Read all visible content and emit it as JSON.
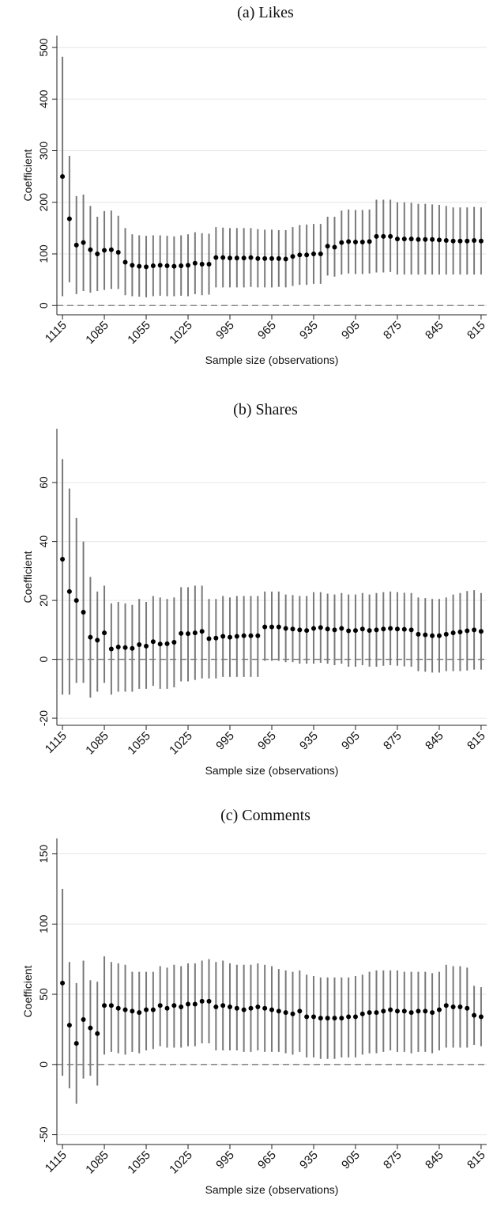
{
  "chart_data": [
    {
      "type": "errorbar",
      "title": "(a) Likes",
      "xlabel": "Sample size (observations)",
      "ylabel": "Coefficient",
      "x": [
        1115,
        1110,
        1105,
        1100,
        1095,
        1090,
        1085,
        1080,
        1075,
        1070,
        1065,
        1060,
        1055,
        1050,
        1045,
        1040,
        1035,
        1030,
        1025,
        1020,
        1015,
        1010,
        1005,
        1000,
        995,
        990,
        985,
        980,
        975,
        970,
        965,
        960,
        955,
        950,
        945,
        940,
        935,
        930,
        925,
        920,
        915,
        910,
        905,
        900,
        895,
        890,
        885,
        880,
        875,
        870,
        865,
        860,
        855,
        850,
        845,
        840,
        835,
        830,
        825,
        820,
        815
      ],
      "values": [
        250,
        168,
        117,
        122,
        108,
        100,
        107,
        108,
        103,
        84,
        78,
        76,
        75,
        77,
        78,
        77,
        76,
        77,
        78,
        82,
        80,
        80,
        93,
        93,
        92,
        92,
        92,
        93,
        91,
        91,
        91,
        91,
        90,
        95,
        98,
        98,
        100,
        100,
        115,
        113,
        122,
        124,
        123,
        123,
        124,
        134,
        134,
        134,
        129,
        129,
        129,
        128,
        128,
        128,
        127,
        126,
        125,
        125,
        125,
        126,
        125
      ],
      "lower": [
        18,
        45,
        22,
        28,
        25,
        28,
        30,
        32,
        32,
        20,
        18,
        17,
        16,
        18,
        19,
        18,
        18,
        19,
        18,
        22,
        20,
        21,
        35,
        35,
        35,
        35,
        35,
        36,
        35,
        35,
        35,
        36,
        35,
        38,
        40,
        40,
        42,
        42,
        58,
        56,
        60,
        62,
        61,
        61,
        62,
        64,
        64,
        65,
        60,
        60,
        60,
        60,
        60,
        60,
        60,
        60,
        60,
        60,
        60,
        60,
        60
      ],
      "upper": [
        482,
        290,
        212,
        215,
        193,
        172,
        183,
        184,
        174,
        150,
        138,
        136,
        135,
        136,
        136,
        135,
        134,
        136,
        138,
        142,
        140,
        139,
        152,
        151,
        150,
        150,
        150,
        150,
        148,
        147,
        147,
        146,
        146,
        152,
        156,
        157,
        158,
        158,
        172,
        172,
        184,
        186,
        185,
        185,
        186,
        205,
        205,
        205,
        200,
        200,
        199,
        197,
        197,
        196,
        195,
        193,
        190,
        190,
        190,
        191,
        190
      ],
      "color": "#000000",
      "ci_color": "#7a7a7a",
      "reference_line": 0,
      "grid": true,
      "xlim": [
        1119,
        811
      ],
      "xticks": [
        1115,
        1085,
        1055,
        1025,
        995,
        965,
        935,
        905,
        875,
        845,
        815
      ],
      "ylim": [
        -18,
        523
      ],
      "yticks": [
        0,
        100,
        200,
        300,
        400,
        500
      ]
    },
    {
      "type": "errorbar",
      "title": "(b) Shares",
      "xlabel": "Sample size (observations)",
      "ylabel": "Coefficient",
      "x": [
        1115,
        1110,
        1105,
        1100,
        1095,
        1090,
        1085,
        1080,
        1075,
        1070,
        1065,
        1060,
        1055,
        1050,
        1045,
        1040,
        1035,
        1030,
        1025,
        1020,
        1015,
        1010,
        1005,
        1000,
        995,
        990,
        985,
        980,
        975,
        970,
        965,
        960,
        955,
        950,
        945,
        940,
        935,
        930,
        925,
        920,
        915,
        910,
        905,
        900,
        895,
        890,
        885,
        880,
        875,
        870,
        865,
        860,
        855,
        850,
        845,
        840,
        835,
        830,
        825,
        820,
        815
      ],
      "values": [
        34,
        23,
        20,
        16,
        7.5,
        6.5,
        9,
        3.5,
        4.2,
        4,
        3.7,
        5,
        4.5,
        6,
        5.2,
        5.3,
        5.8,
        8.8,
        8.7,
        9,
        9.5,
        7,
        7.2,
        7.8,
        7.5,
        7.8,
        8,
        8,
        8,
        11,
        11,
        11,
        10.5,
        10.3,
        10,
        9.8,
        10.5,
        10.8,
        10.3,
        10,
        10.5,
        9.7,
        9.8,
        10.3,
        9.8,
        10,
        10.3,
        10.5,
        10.3,
        10.2,
        10,
        8.5,
        8.3,
        8,
        8,
        8.5,
        9,
        9.3,
        9.7,
        10,
        9.5
      ],
      "lower": [
        -12,
        -12,
        -8,
        -8,
        -13,
        -11,
        -8,
        -12,
        -11,
        -11,
        -11,
        -10,
        -10,
        -9,
        -10,
        -10,
        -9.5,
        -7.5,
        -7.5,
        -7,
        -6.5,
        -6.5,
        -6.5,
        -6,
        -6,
        -6,
        -6,
        -6,
        -6,
        -0.5,
        -0.5,
        -0.5,
        -1,
        -1,
        -1.5,
        -1.5,
        -1.5,
        -1.2,
        -1.5,
        -2,
        -1.5,
        -2.5,
        -2.5,
        -2,
        -2.5,
        -2.5,
        -2.2,
        -2,
        -2.2,
        -2.4,
        -2.5,
        -4,
        -4.2,
        -4.5,
        -4.5,
        -4,
        -4,
        -4,
        -3.8,
        -3.5,
        -3.5
      ],
      "upper": [
        68,
        58,
        48,
        40,
        28,
        23,
        25,
        19,
        19.5,
        19,
        18.5,
        20.5,
        19.5,
        21.5,
        21,
        20.5,
        21,
        24.5,
        24.5,
        25,
        25,
        20.5,
        20.5,
        21.5,
        21,
        21.5,
        21.5,
        21.5,
        21.5,
        23,
        23,
        23,
        22,
        21.8,
        21.5,
        21.5,
        22.8,
        22.8,
        22.3,
        22,
        22.5,
        22,
        22,
        22.5,
        22,
        22.5,
        22.8,
        23,
        22.8,
        22.6,
        22.5,
        21,
        20.8,
        20.5,
        20.5,
        21,
        22,
        22.5,
        23.2,
        23.5,
        22.5
      ],
      "color": "#000000",
      "ci_color": "#7a7a7a",
      "reference_line": 0,
      "grid": true,
      "xlim": [
        1119,
        811
      ],
      "xticks": [
        1115,
        1085,
        1055,
        1025,
        995,
        965,
        935,
        905,
        875,
        845,
        815
      ],
      "ylim": [
        -22.4,
        78.3
      ],
      "yticks": [
        -20,
        0,
        20,
        40,
        60
      ]
    },
    {
      "type": "errorbar",
      "title": "(c) Comments",
      "xlabel": "Sample size (observations)",
      "ylabel": "Coefficient",
      "x": [
        1115,
        1110,
        1105,
        1100,
        1095,
        1090,
        1085,
        1080,
        1075,
        1070,
        1065,
        1060,
        1055,
        1050,
        1045,
        1040,
        1035,
        1030,
        1025,
        1020,
        1015,
        1010,
        1005,
        1000,
        995,
        990,
        985,
        980,
        975,
        970,
        965,
        960,
        955,
        950,
        945,
        940,
        935,
        930,
        925,
        920,
        915,
        910,
        905,
        900,
        895,
        890,
        885,
        880,
        875,
        870,
        865,
        860,
        855,
        850,
        845,
        840,
        835,
        830,
        825,
        820,
        815
      ],
      "values": [
        58,
        28,
        15,
        32,
        26,
        22,
        42,
        42,
        40,
        39,
        38,
        37,
        39,
        39,
        42,
        40,
        42,
        41,
        43,
        43,
        45,
        45,
        41,
        42,
        41,
        40,
        39,
        40,
        41,
        40,
        39,
        38,
        37,
        36,
        38,
        34,
        34,
        33,
        33,
        33,
        33,
        34,
        34,
        36,
        37,
        37,
        38,
        39,
        38,
        38,
        37,
        38,
        38,
        37,
        39,
        42,
        41,
        41,
        40,
        35,
        34
      ],
      "lower": [
        -8,
        -17,
        -28,
        -10,
        -8,
        -15,
        7,
        9,
        8,
        7,
        9,
        8,
        10,
        11,
        13,
        12,
        12,
        12,
        13,
        13,
        15,
        15,
        10,
        10,
        10,
        10,
        9,
        9,
        10,
        9,
        9,
        9,
        8,
        7,
        9,
        5,
        5,
        4,
        4,
        4,
        5,
        5,
        5,
        7,
        8,
        8,
        9,
        10,
        9,
        9,
        8,
        9,
        9,
        8,
        10,
        12,
        12,
        12,
        12,
        14,
        13
      ],
      "upper": [
        125,
        73,
        58,
        74,
        60,
        59,
        77,
        73,
        72,
        71,
        66,
        66,
        66,
        66,
        70,
        69,
        71,
        70,
        72,
        72,
        74,
        75,
        73,
        74,
        72,
        71,
        71,
        71,
        72,
        71,
        70,
        68,
        67,
        66,
        67,
        64,
        63,
        62,
        62,
        62,
        62,
        62,
        63,
        64,
        66,
        67,
        67,
        67,
        67,
        66,
        66,
        66,
        66,
        65,
        66,
        71,
        70,
        70,
        69,
        56,
        55
      ],
      "color": "#000000",
      "ci_color": "#7a7a7a",
      "reference_line": 0,
      "grid": true,
      "xlim": [
        1119,
        811
      ],
      "xticks": [
        1115,
        1085,
        1055,
        1025,
        995,
        965,
        935,
        905,
        875,
        845,
        815
      ],
      "ylim": [
        -57,
        161
      ],
      "yticks": [
        -50,
        0,
        50,
        100,
        150
      ]
    }
  ]
}
